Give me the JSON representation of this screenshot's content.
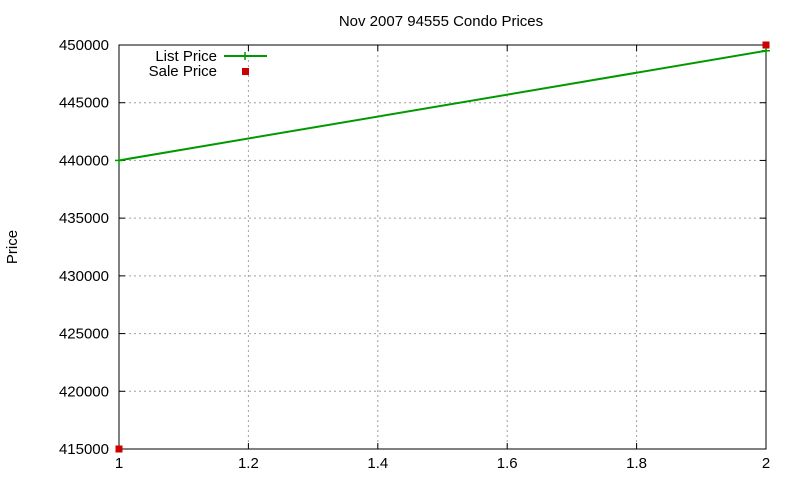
{
  "chart_data": {
    "type": "line",
    "title": "Nov 2007 94555 Condo Prices",
    "xlabel": "",
    "ylabel": "Price",
    "xlim": [
      1,
      2
    ],
    "ylim": [
      415000,
      450000
    ],
    "x_ticks": [
      1,
      1.2,
      1.4,
      1.6,
      1.8,
      2
    ],
    "x_tick_labels": [
      "1",
      "1.2",
      "1.4",
      "1.6",
      "1.8",
      "2"
    ],
    "y_ticks": [
      415000,
      420000,
      425000,
      430000,
      435000,
      440000,
      445000,
      450000
    ],
    "y_tick_labels": [
      "415000",
      "420000",
      "425000",
      "430000",
      "435000",
      "440000",
      "445000",
      "450000"
    ],
    "grid": true,
    "legend_position": "top-left",
    "series": [
      {
        "name": "List Price",
        "style": "line-plus",
        "color": "#009900",
        "points": [
          [
            1,
            440000
          ],
          [
            2,
            449500
          ]
        ]
      },
      {
        "name": "Sale Price",
        "style": "square",
        "color": "#cc0000",
        "points": [
          [
            1,
            415000
          ],
          [
            2,
            450000
          ]
        ]
      }
    ]
  }
}
